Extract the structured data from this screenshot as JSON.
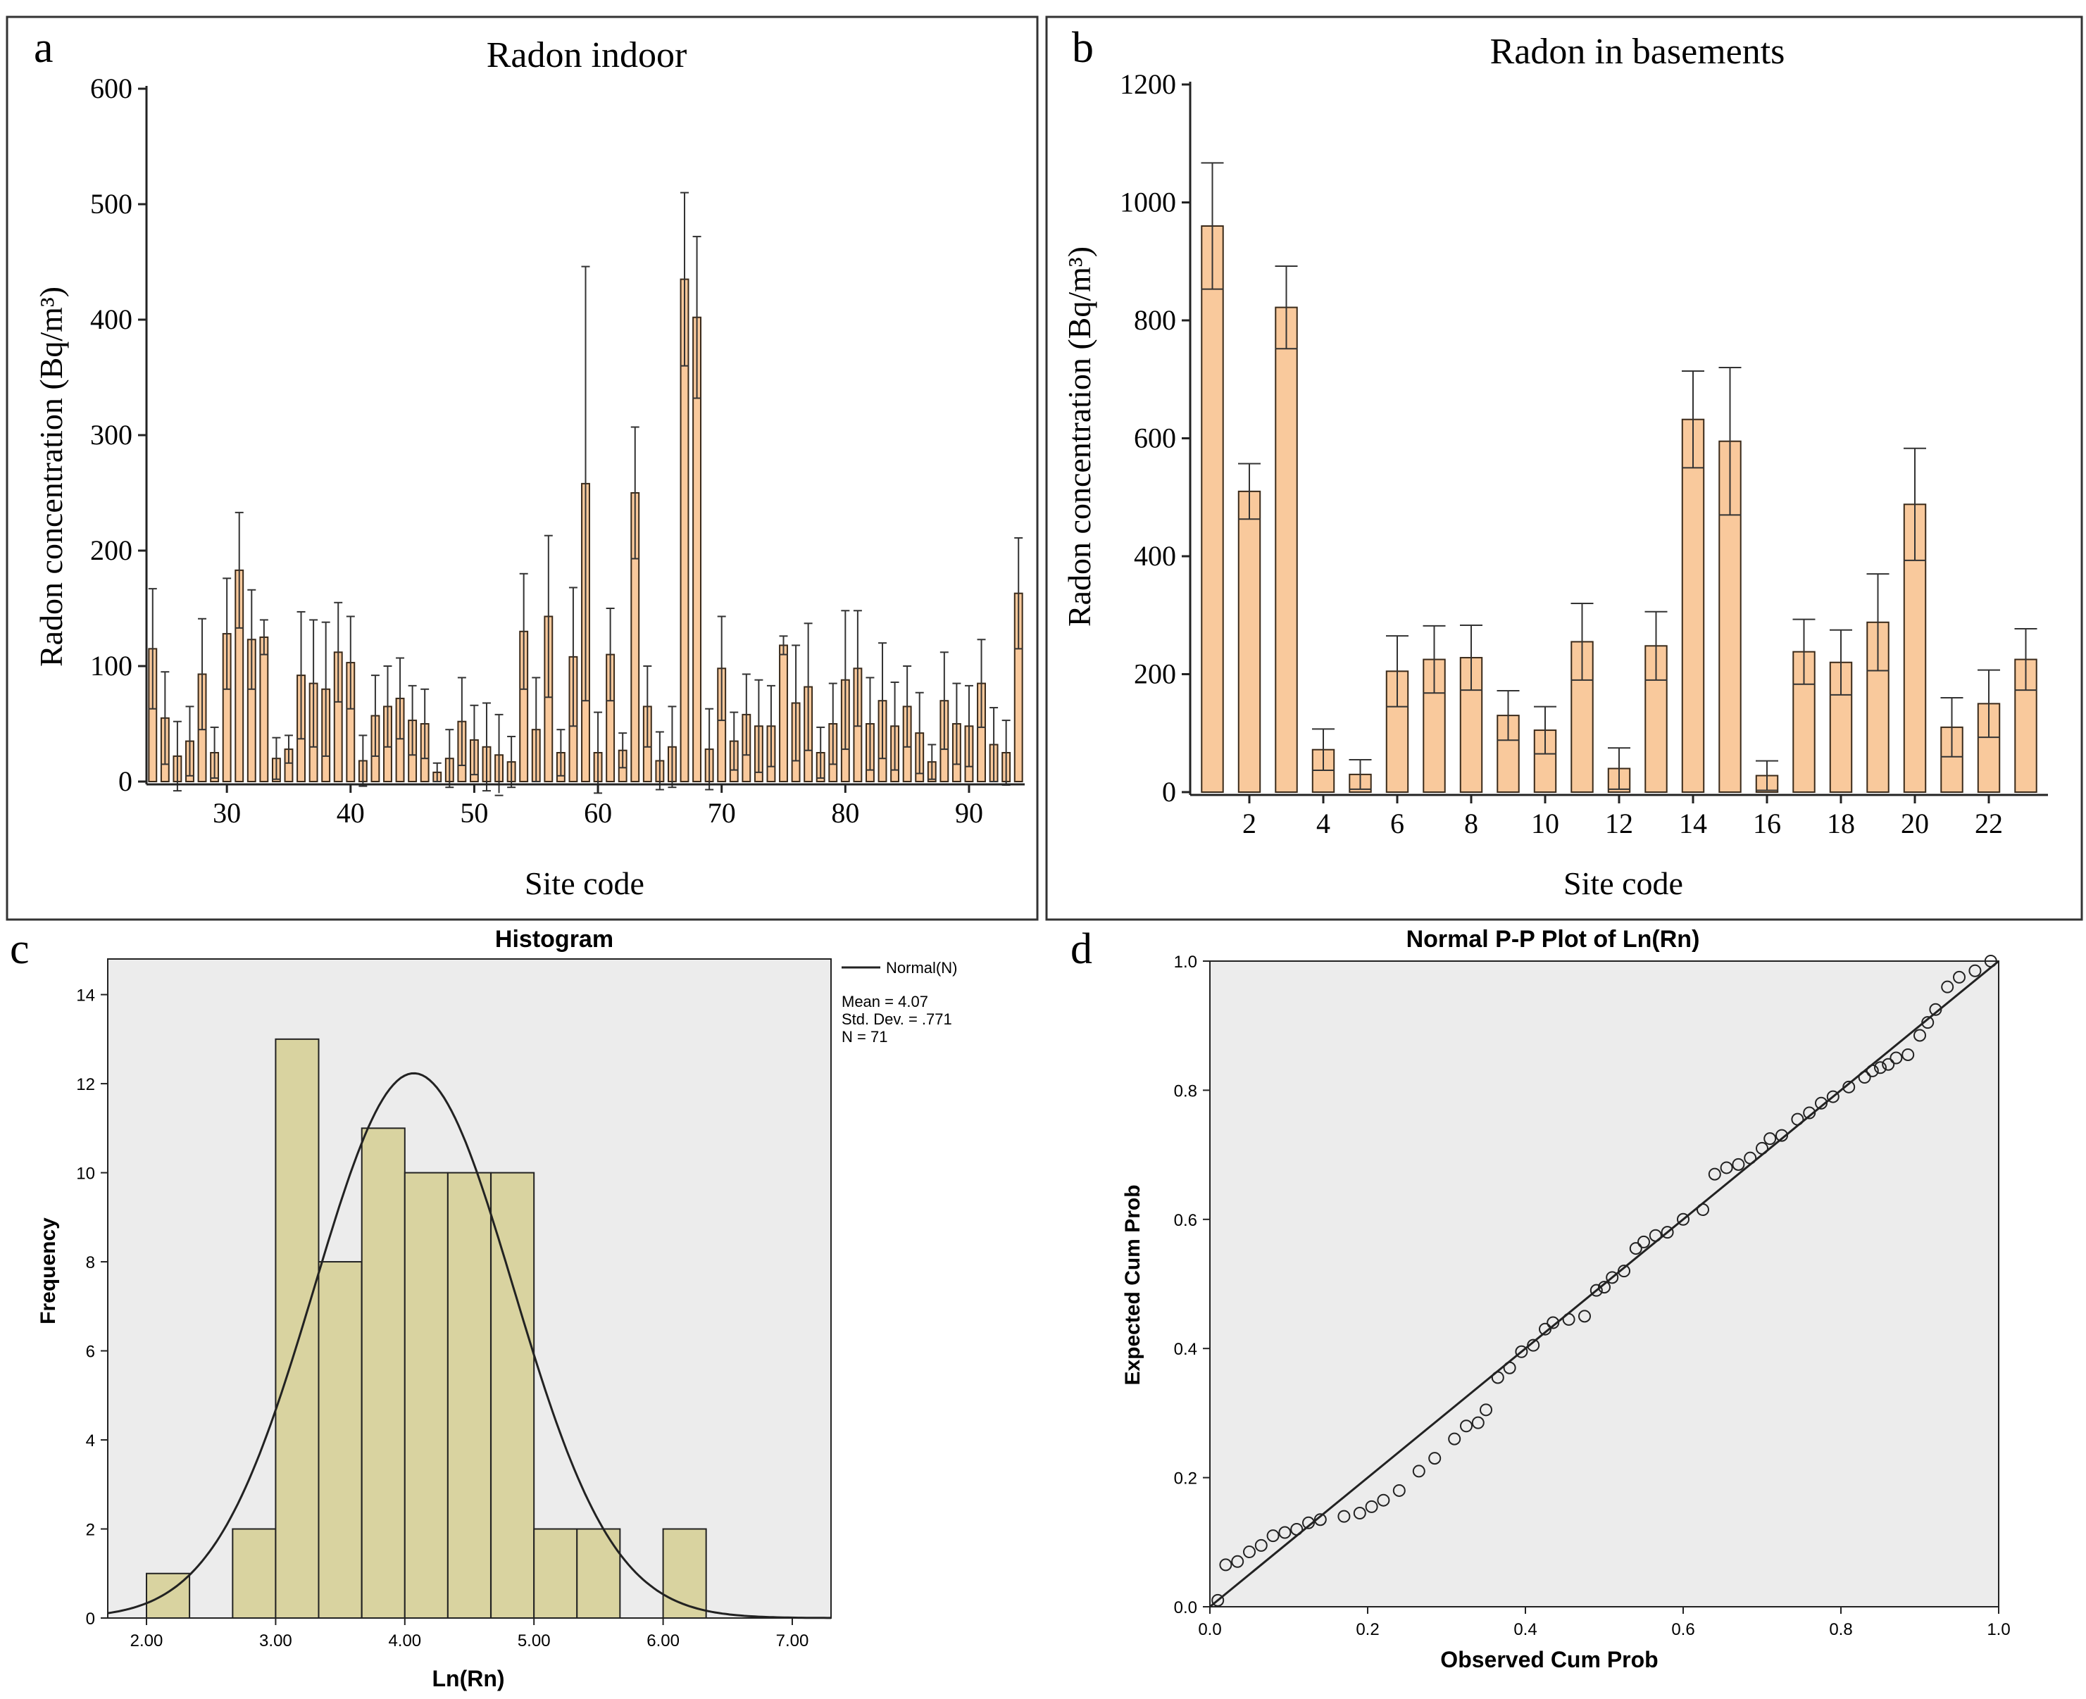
{
  "panels": {
    "a": {
      "letter": "a"
    },
    "b": {
      "letter": "b"
    },
    "c": {
      "letter": "c"
    },
    "d": {
      "letter": "d"
    }
  },
  "colors": {
    "bar_orange": "#f9c99c",
    "bar_orange_dark": "#c8874e",
    "bar_khaki": "#d9d3a0",
    "plot_bg": "#ececec",
    "ink": "#222222"
  },
  "chart_data": [
    {
      "id": "a",
      "type": "bar",
      "title": "Radon indoor",
      "xlabel": "Site code",
      "ylabel": "Radon concentration (Bq/m³)",
      "ylim": [
        0,
        600
      ],
      "yticks": [
        0,
        100,
        200,
        300,
        400,
        500,
        600
      ],
      "xlim": [
        23.5,
        94.5
      ],
      "xticks": [
        30,
        40,
        50,
        60,
        70,
        80,
        90
      ],
      "categories": [
        24,
        25,
        26,
        27,
        28,
        29,
        30,
        31,
        32,
        33,
        34,
        35,
        36,
        37,
        38,
        39,
        40,
        41,
        42,
        43,
        44,
        45,
        46,
        47,
        48,
        49,
        50,
        51,
        52,
        53,
        54,
        55,
        56,
        57,
        58,
        59,
        60,
        61,
        62,
        63,
        64,
        65,
        66,
        67,
        68,
        69,
        70,
        71,
        72,
        73,
        74,
        75,
        76,
        77,
        78,
        79,
        80,
        81,
        82,
        83,
        84,
        85,
        86,
        87,
        88,
        89,
        90,
        91,
        92,
        93,
        94
      ],
      "values": [
        115,
        55,
        22,
        35,
        93,
        25,
        128,
        183,
        123,
        125,
        20,
        28,
        92,
        85,
        80,
        112,
        103,
        18,
        57,
        65,
        72,
        53,
        50,
        8,
        20,
        52,
        36,
        30,
        23,
        17,
        130,
        45,
        143,
        25,
        108,
        258,
        25,
        110,
        27,
        250,
        65,
        18,
        30,
        435,
        402,
        28,
        98,
        35,
        58,
        48,
        48,
        118,
        68,
        82,
        25,
        50,
        88,
        98,
        50,
        70,
        48,
        65,
        42,
        17,
        70,
        50,
        48,
        85,
        32,
        25,
        163
      ],
      "errors": [
        52,
        40,
        30,
        30,
        48,
        22,
        48,
        50,
        43,
        15,
        18,
        12,
        55,
        55,
        58,
        43,
        40,
        22,
        35,
        35,
        35,
        30,
        30,
        8,
        25,
        38,
        30,
        38,
        35,
        22,
        50,
        45,
        70,
        20,
        60,
        188,
        35,
        40,
        15,
        57,
        35,
        25,
        35,
        75,
        70,
        35,
        45,
        25,
        35,
        40,
        35,
        8,
        50,
        55,
        22,
        35,
        60,
        50,
        40,
        50,
        38,
        35,
        35,
        15,
        42,
        35,
        35,
        38,
        32,
        28,
        48
      ]
    },
    {
      "id": "b",
      "type": "bar",
      "title": "Radon in basements",
      "xlabel": "Site code",
      "ylabel": "Radon concentration (Bq/m³)",
      "ylim": [
        0,
        1200
      ],
      "yticks": [
        0,
        200,
        400,
        600,
        800,
        1000,
        1200
      ],
      "xlim": [
        0.4,
        23.6
      ],
      "xticks": [
        2,
        4,
        6,
        8,
        10,
        12,
        14,
        16,
        18,
        20,
        22
      ],
      "categories": [
        1,
        2,
        3,
        4,
        5,
        6,
        7,
        8,
        9,
        10,
        11,
        12,
        13,
        14,
        15,
        16,
        17,
        18,
        19,
        20,
        21,
        22,
        23
      ],
      "values": [
        960,
        510,
        822,
        72,
        30,
        205,
        225,
        228,
        130,
        105,
        255,
        40,
        248,
        632,
        595,
        28,
        238,
        220,
        288,
        488,
        110,
        150,
        225
      ],
      "errors": [
        107,
        47,
        70,
        35,
        25,
        60,
        57,
        55,
        42,
        40,
        65,
        35,
        58,
        82,
        125,
        25,
        55,
        55,
        82,
        95,
        50,
        57,
        52
      ]
    },
    {
      "id": "c",
      "type": "bar",
      "title": "Histogram",
      "xlabel": "Ln(Rn)",
      "ylabel": "Frequency",
      "xlim": [
        1.7,
        7.3
      ],
      "ylim": [
        0,
        14.8
      ],
      "xticks": [
        2,
        3,
        4,
        5,
        6,
        7
      ],
      "xtick_labels": [
        "2.00",
        "3.00",
        "4.00",
        "5.00",
        "6.00",
        "7.00"
      ],
      "yticks": [
        0,
        2,
        4,
        6,
        8,
        10,
        12,
        14
      ],
      "bin_width": 0.333,
      "bin_starts": [
        2.0,
        2.667,
        3.0,
        3.333,
        3.667,
        4.0,
        4.333,
        4.667,
        5.0,
        5.333,
        6.0
      ],
      "values": [
        1,
        2,
        13,
        8,
        11,
        10,
        10,
        10,
        2,
        2,
        2
      ],
      "normal_curve": {
        "mean": 4.07,
        "sd": 0.771,
        "n": 71
      },
      "legend_label": "Normal(N)",
      "stats": [
        "Mean = 4.07",
        "Std. Dev. = .771",
        "N = 71"
      ]
    },
    {
      "id": "d",
      "type": "scatter",
      "title": "Normal P-P Plot of Ln(Rn)",
      "xlabel": "Observed Cum Prob",
      "ylabel": "Expected Cum Prob",
      "xlim": [
        0,
        1
      ],
      "ylim": [
        0,
        1
      ],
      "xticks": [
        0,
        0.2,
        0.4,
        0.6,
        0.8,
        1.0
      ],
      "yticks": [
        0,
        0.2,
        0.4,
        0.6,
        0.8,
        1.0
      ],
      "tick_labels": [
        "0.0",
        "0.2",
        "0.4",
        "0.6",
        "0.8",
        "1.0"
      ],
      "reference_line": [
        [
          0,
          0
        ],
        [
          1,
          1
        ]
      ],
      "points": [
        [
          0.01,
          0.01
        ],
        [
          0.02,
          0.065
        ],
        [
          0.035,
          0.07
        ],
        [
          0.05,
          0.085
        ],
        [
          0.065,
          0.095
        ],
        [
          0.08,
          0.11
        ],
        [
          0.095,
          0.115
        ],
        [
          0.11,
          0.12
        ],
        [
          0.125,
          0.13
        ],
        [
          0.14,
          0.135
        ],
        [
          0.17,
          0.14
        ],
        [
          0.19,
          0.145
        ],
        [
          0.205,
          0.155
        ],
        [
          0.22,
          0.165
        ],
        [
          0.24,
          0.18
        ],
        [
          0.265,
          0.21
        ],
        [
          0.285,
          0.23
        ],
        [
          0.31,
          0.26
        ],
        [
          0.325,
          0.28
        ],
        [
          0.34,
          0.285
        ],
        [
          0.35,
          0.305
        ],
        [
          0.365,
          0.355
        ],
        [
          0.38,
          0.37
        ],
        [
          0.395,
          0.395
        ],
        [
          0.41,
          0.405
        ],
        [
          0.425,
          0.43
        ],
        [
          0.435,
          0.44
        ],
        [
          0.455,
          0.445
        ],
        [
          0.475,
          0.45
        ],
        [
          0.49,
          0.49
        ],
        [
          0.5,
          0.495
        ],
        [
          0.51,
          0.51
        ],
        [
          0.525,
          0.52
        ],
        [
          0.54,
          0.555
        ],
        [
          0.55,
          0.565
        ],
        [
          0.565,
          0.575
        ],
        [
          0.58,
          0.58
        ],
        [
          0.6,
          0.6
        ],
        [
          0.625,
          0.615
        ],
        [
          0.64,
          0.67
        ],
        [
          0.655,
          0.68
        ],
        [
          0.67,
          0.685
        ],
        [
          0.685,
          0.695
        ],
        [
          0.7,
          0.71
        ],
        [
          0.71,
          0.725
        ],
        [
          0.725,
          0.73
        ],
        [
          0.745,
          0.755
        ],
        [
          0.76,
          0.765
        ],
        [
          0.775,
          0.78
        ],
        [
          0.79,
          0.79
        ],
        [
          0.81,
          0.805
        ],
        [
          0.83,
          0.82
        ],
        [
          0.84,
          0.83
        ],
        [
          0.85,
          0.835
        ],
        [
          0.86,
          0.84
        ],
        [
          0.87,
          0.85
        ],
        [
          0.885,
          0.855
        ],
        [
          0.9,
          0.885
        ],
        [
          0.91,
          0.905
        ],
        [
          0.92,
          0.925
        ],
        [
          0.935,
          0.96
        ],
        [
          0.95,
          0.975
        ],
        [
          0.97,
          0.985
        ],
        [
          0.99,
          1.0
        ]
      ]
    }
  ]
}
